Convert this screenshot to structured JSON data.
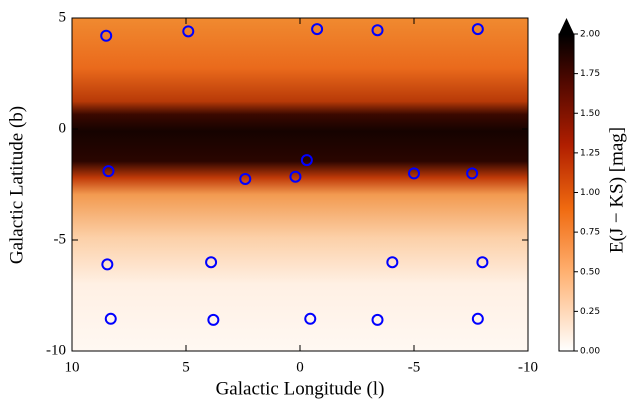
{
  "chart_data": {
    "type": "scatter",
    "xlabel": "Galactic Longitude (l)",
    "ylabel": "Galactic Latitude (b)",
    "colorbar_label": "E(J − KS) [mag]",
    "xlim": [
      10,
      -10
    ],
    "xticks": [
      10,
      5,
      0,
      -5,
      -10
    ],
    "ylim": [
      -10,
      5
    ],
    "yticks": [
      5,
      0,
      -5,
      -10
    ],
    "clim": [
      0,
      2
    ],
    "cticks": [
      {
        "value": 0,
        "label": "0.00"
      },
      {
        "value": 0.25,
        "label": "0.25"
      },
      {
        "value": 0.5,
        "label": "0.50"
      },
      {
        "value": 0.75,
        "label": "0.75"
      },
      {
        "value": 1,
        "label": "1.00"
      },
      {
        "value": 1.25,
        "label": "1.25"
      },
      {
        "value": 1.5,
        "label": "1.50"
      },
      {
        "value": 1.75,
        "label": "1.75"
      },
      {
        "value": 2,
        "label": "2.00"
      }
    ],
    "color": "#0000ff",
    "x": [
      8.5,
      4.9,
      -0.75,
      -3.4,
      -7.8,
      8.4,
      -0.3,
      2.4,
      0.2,
      -5.0,
      -7.55,
      8.45,
      3.9,
      -4.05,
      -8.0,
      8.3,
      3.8,
      -0.45,
      -3.4,
      -7.8
    ],
    "y": [
      4.2,
      4.4,
      4.5,
      4.45,
      4.5,
      -1.9,
      -1.4,
      -2.25,
      -2.15,
      -2.0,
      -2.0,
      -6.1,
      -6.0,
      -6.0,
      -6.0,
      -8.55,
      -8.6,
      -8.55,
      -8.6,
      -8.55
    ]
  }
}
